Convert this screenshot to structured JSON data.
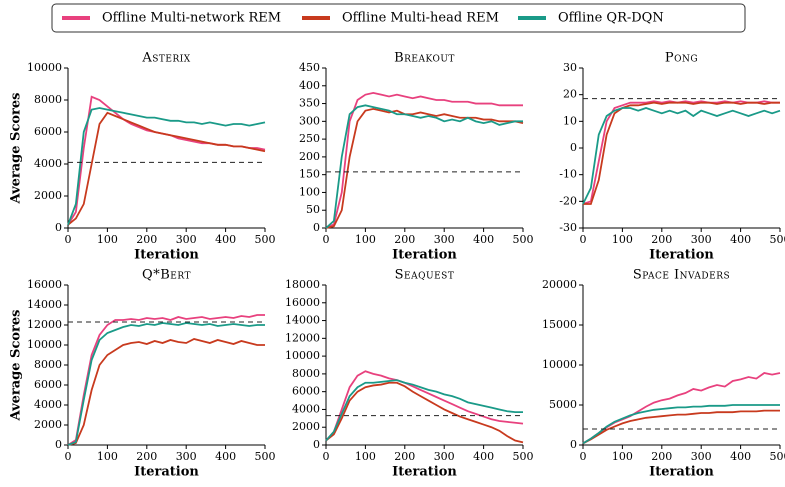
{
  "legend": [
    {
      "name": "Offline Multi-network REM",
      "color": "#e8417e"
    },
    {
      "name": "Offline Multi-head REM",
      "color": "#c83a1e"
    },
    {
      "name": "Offline QR-DQN",
      "color": "#1a9a88"
    }
  ],
  "chart_data": [
    {
      "type": "line",
      "title": "Asterix",
      "ylabel": "Average Scores",
      "xlabel": "Iteration",
      "x": [
        0,
        20,
        40,
        60,
        80,
        100,
        120,
        140,
        160,
        180,
        200,
        220,
        240,
        260,
        280,
        300,
        320,
        340,
        360,
        380,
        400,
        420,
        440,
        460,
        480,
        500
      ],
      "xlim": [
        0,
        500
      ],
      "xticks": [
        0,
        100,
        200,
        300,
        400,
        500
      ],
      "ylim": [
        0,
        10000
      ],
      "yticks": [
        0,
        2000,
        4000,
        6000,
        8000,
        10000
      ],
      "baseline": 4100,
      "series": [
        {
          "values": [
            200,
            1000,
            5000,
            8200,
            8000,
            7600,
            7200,
            6800,
            6500,
            6300,
            6100,
            6000,
            5900,
            5800,
            5600,
            5500,
            5400,
            5300,
            5300,
            5200,
            5200,
            5100,
            5100,
            5000,
            5000,
            4900
          ]
        },
        {
          "values": [
            200,
            600,
            1500,
            4000,
            6500,
            7200,
            7000,
            6800,
            6600,
            6400,
            6200,
            6000,
            5900,
            5800,
            5700,
            5600,
            5500,
            5400,
            5300,
            5200,
            5200,
            5100,
            5100,
            5000,
            4900,
            4800
          ]
        },
        {
          "values": [
            200,
            1500,
            6000,
            7400,
            7500,
            7400,
            7300,
            7200,
            7100,
            7000,
            6900,
            6900,
            6800,
            6700,
            6700,
            6600,
            6600,
            6500,
            6600,
            6500,
            6400,
            6500,
            6500,
            6400,
            6500,
            6600
          ]
        }
      ]
    },
    {
      "type": "line",
      "title": "Breakout",
      "xlabel": "Iteration",
      "x": [
        0,
        20,
        40,
        60,
        80,
        100,
        120,
        140,
        160,
        180,
        200,
        220,
        240,
        260,
        280,
        300,
        320,
        340,
        360,
        380,
        400,
        420,
        440,
        460,
        480,
        500
      ],
      "xlim": [
        0,
        500
      ],
      "xticks": [
        0,
        100,
        200,
        300,
        400,
        500
      ],
      "ylim": [
        0,
        450
      ],
      "yticks": [
        0,
        50,
        100,
        150,
        200,
        250,
        300,
        350,
        400,
        450
      ],
      "baseline": 158,
      "series": [
        {
          "values": [
            0,
            10,
            100,
            300,
            360,
            375,
            380,
            375,
            370,
            375,
            370,
            365,
            370,
            365,
            360,
            360,
            355,
            355,
            355,
            350,
            350,
            350,
            345,
            345,
            345,
            345
          ]
        },
        {
          "values": [
            0,
            5,
            50,
            200,
            300,
            330,
            335,
            330,
            325,
            330,
            320,
            320,
            325,
            320,
            315,
            320,
            315,
            310,
            310,
            310,
            305,
            305,
            300,
            300,
            300,
            295
          ]
        },
        {
          "values": [
            0,
            20,
            200,
            320,
            340,
            345,
            340,
            335,
            330,
            320,
            320,
            315,
            310,
            315,
            310,
            300,
            305,
            300,
            310,
            300,
            295,
            300,
            290,
            295,
            300,
            300
          ]
        }
      ]
    },
    {
      "type": "line",
      "title": "Pong",
      "xlabel": "Iteration",
      "x": [
        0,
        20,
        40,
        60,
        80,
        100,
        120,
        140,
        160,
        180,
        200,
        220,
        240,
        260,
        280,
        300,
        320,
        340,
        360,
        380,
        400,
        420,
        440,
        460,
        480,
        500
      ],
      "xlim": [
        0,
        500
      ],
      "xticks": [
        0,
        100,
        200,
        300,
        400,
        500
      ],
      "ylim": [
        -30,
        30
      ],
      "yticks": [
        -30,
        -20,
        -10,
        0,
        10,
        20,
        30
      ],
      "baseline": 18.5,
      "series": [
        {
          "values": [
            -21,
            -20,
            -5,
            10,
            15,
            16,
            17,
            17,
            17,
            17.5,
            17,
            17.5,
            17,
            17.5,
            17,
            17.5,
            17,
            17,
            17.5,
            17,
            17.5,
            17,
            17,
            17.5,
            17,
            17
          ]
        },
        {
          "values": [
            -21,
            -21,
            -12,
            5,
            13,
            15,
            16,
            16,
            16.5,
            17,
            16.5,
            17,
            17,
            17,
            16.5,
            17,
            17,
            16.5,
            17,
            17,
            16.5,
            17,
            17,
            16.5,
            17,
            17
          ]
        },
        {
          "values": [
            -21,
            -15,
            5,
            12,
            14,
            15,
            15,
            14,
            15,
            14,
            13,
            14,
            13,
            14,
            12,
            14,
            13,
            12,
            13,
            14,
            13,
            12,
            13,
            14,
            13,
            14
          ]
        }
      ]
    },
    {
      "type": "line",
      "title": "Q*Bert",
      "ylabel": "Average Scores",
      "xlabel": "Iteration",
      "x": [
        0,
        20,
        40,
        60,
        80,
        100,
        120,
        140,
        160,
        180,
        200,
        220,
        240,
        260,
        280,
        300,
        320,
        340,
        360,
        380,
        400,
        420,
        440,
        460,
        480,
        500
      ],
      "xlim": [
        0,
        500
      ],
      "xticks": [
        0,
        100,
        200,
        300,
        400,
        500
      ],
      "ylim": [
        0,
        16000
      ],
      "yticks": [
        0,
        2000,
        4000,
        6000,
        8000,
        10000,
        12000,
        14000,
        16000
      ],
      "baseline": 12300,
      "series": [
        {
          "values": [
            0,
            500,
            5000,
            9000,
            11000,
            12000,
            12500,
            12500,
            12600,
            12500,
            12700,
            12600,
            12700,
            12500,
            12800,
            12600,
            12700,
            12800,
            12600,
            12700,
            12800,
            12700,
            12900,
            12800,
            13000,
            13000
          ]
        },
        {
          "values": [
            0,
            200,
            2000,
            5500,
            8000,
            9000,
            9500,
            10000,
            10200,
            10300,
            10100,
            10400,
            10200,
            10500,
            10300,
            10200,
            10600,
            10400,
            10200,
            10500,
            10300,
            10100,
            10400,
            10200,
            10000,
            10000
          ]
        },
        {
          "values": [
            0,
            300,
            4500,
            8500,
            10500,
            11200,
            11500,
            11800,
            12000,
            11900,
            12100,
            12000,
            12200,
            12100,
            12000,
            12200,
            12100,
            12000,
            12100,
            11900,
            12000,
            12100,
            12000,
            11900,
            12000,
            12000
          ]
        }
      ]
    },
    {
      "type": "line",
      "title": "Seaquest",
      "xlabel": "Iteration",
      "x": [
        0,
        20,
        40,
        60,
        80,
        100,
        120,
        140,
        160,
        180,
        200,
        220,
        240,
        260,
        280,
        300,
        320,
        340,
        360,
        380,
        400,
        420,
        440,
        460,
        480,
        500
      ],
      "xlim": [
        0,
        500
      ],
      "xticks": [
        0,
        100,
        200,
        300,
        400,
        500
      ],
      "ylim": [
        0,
        18000
      ],
      "yticks": [
        0,
        2000,
        4000,
        6000,
        8000,
        10000,
        12000,
        14000,
        16000,
        18000
      ],
      "baseline": 3300,
      "series": [
        {
          "values": [
            500,
            1500,
            4000,
            6500,
            7800,
            8300,
            8000,
            7800,
            7500,
            7300,
            7000,
            6600,
            6200,
            5800,
            5400,
            5000,
            4600,
            4200,
            3800,
            3500,
            3200,
            2900,
            2700,
            2600,
            2500,
            2400
          ]
        },
        {
          "values": [
            500,
            1200,
            3000,
            5000,
            6000,
            6500,
            6700,
            6800,
            7000,
            7000,
            6600,
            6000,
            5500,
            5000,
            4500,
            4000,
            3600,
            3200,
            2900,
            2600,
            2300,
            2000,
            1600,
            1000,
            500,
            300
          ]
        },
        {
          "values": [
            500,
            1500,
            3500,
            5500,
            6500,
            7000,
            7000,
            7100,
            7200,
            7300,
            7000,
            6800,
            6500,
            6200,
            6000,
            5700,
            5500,
            5200,
            4800,
            4600,
            4400,
            4200,
            4000,
            3800,
            3700,
            3700
          ]
        }
      ]
    },
    {
      "type": "line",
      "title": "Space Invaders",
      "xlabel": "Iteration",
      "x": [
        0,
        20,
        40,
        60,
        80,
        100,
        120,
        140,
        160,
        180,
        200,
        220,
        240,
        260,
        280,
        300,
        320,
        340,
        360,
        380,
        400,
        420,
        440,
        460,
        480,
        500
      ],
      "xlim": [
        0,
        500
      ],
      "xticks": [
        0,
        100,
        200,
        300,
        400,
        500
      ],
      "ylim": [
        0,
        20000
      ],
      "yticks": [
        0,
        5000,
        10000,
        15000,
        20000
      ],
      "baseline": 2000,
      "series": [
        {
          "values": [
            200,
            800,
            1500,
            2200,
            2800,
            3200,
            3600,
            4200,
            4800,
            5300,
            5600,
            5800,
            6200,
            6500,
            7000,
            6800,
            7200,
            7500,
            7300,
            8000,
            8200,
            8500,
            8300,
            9000,
            8800,
            9000
          ]
        },
        {
          "values": [
            200,
            700,
            1300,
            1900,
            2300,
            2700,
            3000,
            3200,
            3400,
            3500,
            3600,
            3700,
            3800,
            3800,
            3900,
            4000,
            4000,
            4100,
            4100,
            4100,
            4200,
            4200,
            4200,
            4300,
            4300,
            4300
          ]
        },
        {
          "values": [
            200,
            800,
            1500,
            2300,
            2900,
            3300,
            3700,
            4000,
            4200,
            4400,
            4500,
            4600,
            4700,
            4700,
            4800,
            4800,
            4900,
            4900,
            4900,
            5000,
            5000,
            5000,
            5000,
            5000,
            5000,
            5000
          ]
        }
      ]
    }
  ]
}
